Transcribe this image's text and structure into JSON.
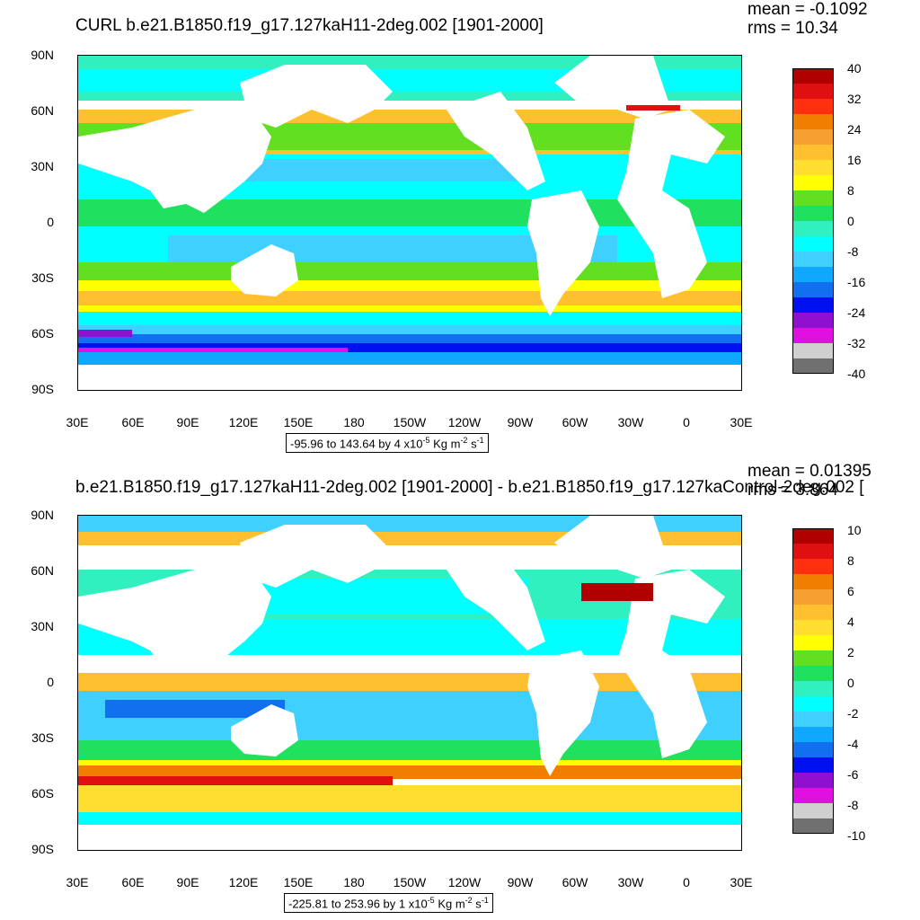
{
  "panels": [
    {
      "title": "CURL b.e21.B1850.f19_g17.127kaH11-2deg.002 [1901-2000]",
      "mean": "mean = -0.1092",
      "rms": "rms = 10.34",
      "range": "-95.96 to 143.64 by 4 x10",
      "range_exp": "-5",
      "range_units_a": " Kg m",
      "range_units_exp1": "-2",
      "range_units_b": " s",
      "range_units_exp2": "-1",
      "colorbar_labels": [
        "40",
        "32",
        "24",
        "16",
        "8",
        "0",
        "-8",
        "-16",
        "-24",
        "-32",
        "-40"
      ]
    },
    {
      "title": "b.e21.B1850.f19_g17.127kaH11-2deg.002 [1901-2000] - b.e21.B1850.f19_g17.127kaControl-2deg.002 [",
      "mean": "mean = 0.01395",
      "rms": "rms = 3.864",
      "range": "-225.81 to 253.96 by 1 x10",
      "range_exp": "-5",
      "range_units_a": " Kg m",
      "range_units_exp1": "-2",
      "range_units_b": " s",
      "range_units_exp2": "-1",
      "colorbar_labels": [
        "10",
        "8",
        "6",
        "4",
        "2",
        "0",
        "-2",
        "-4",
        "-6",
        "-8",
        "-10"
      ]
    }
  ],
  "lat_labels": [
    "90N",
    "60N",
    "30N",
    "0",
    "30S",
    "60S",
    "90S"
  ],
  "lon_labels": [
    "30E",
    "60E",
    "90E",
    "120E",
    "150E",
    "180",
    "150W",
    "120W",
    "90W",
    "60W",
    "30W",
    "0",
    "30E"
  ],
  "colorbar_colors": [
    "#b00000",
    "#e01010",
    "#ff3010",
    "#f07f00",
    "#f5a030",
    "#ffc030",
    "#ffde30",
    "#ffff00",
    "#60e020",
    "#20e060",
    "#30f0c0",
    "#00ffff",
    "#40d0ff",
    "#10a8ff",
    "#1070f0",
    "#0010f0",
    "#9010d0",
    "#e010e0",
    "#d0d0d0",
    "#707070"
  ]
}
